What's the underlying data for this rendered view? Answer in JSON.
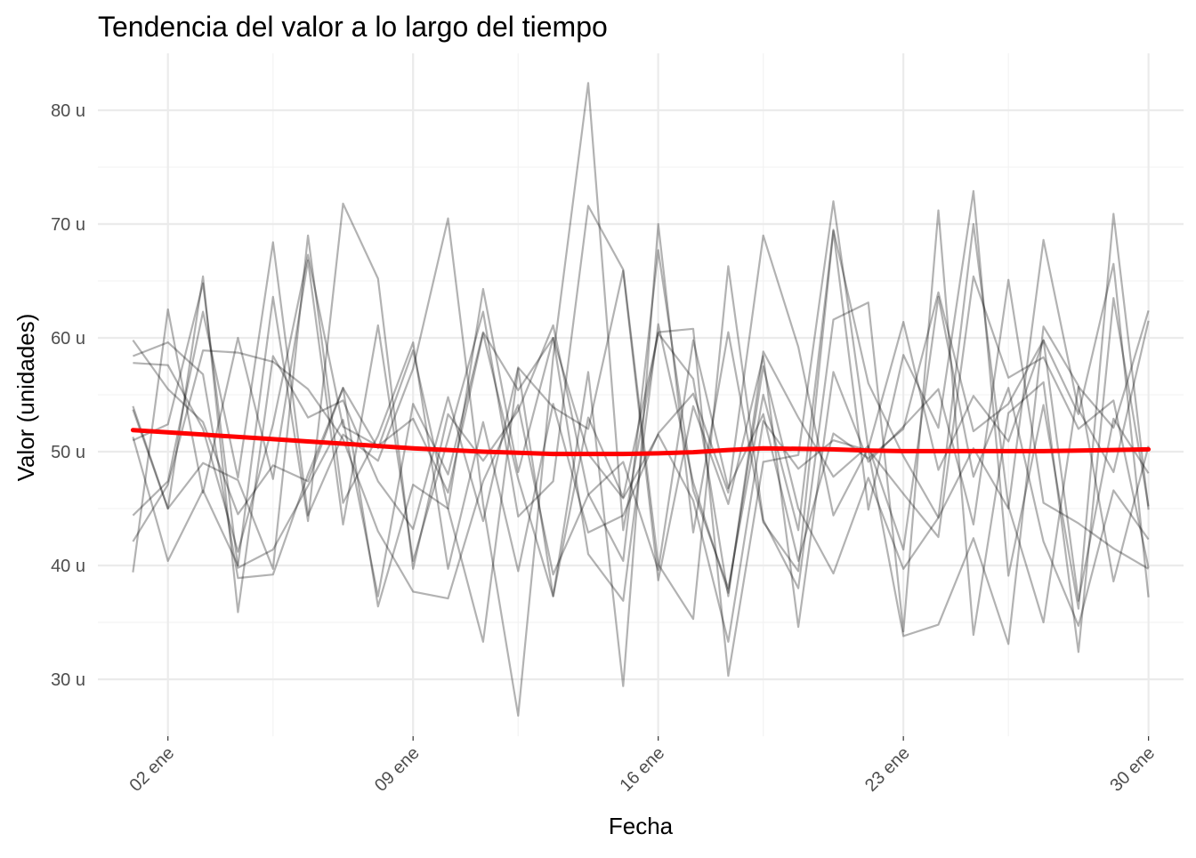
{
  "chart_data": {
    "type": "line",
    "title": "Tendencia del valor a lo largo del tiempo",
    "xlabel": "Fecha",
    "ylabel": "Valor (unidades)",
    "x_axis": {
      "type": "date",
      "range": [
        "2023-12-31",
        "2024-01-31"
      ],
      "major_ticks": [
        "2024-01-02",
        "2024-01-09",
        "2024-01-16",
        "2024-01-23",
        "2024-01-30"
      ],
      "tick_labels": [
        "02 ene",
        "09 ene",
        "16 ene",
        "23 ene",
        "30 ene"
      ],
      "minor_ticks": [
        "2024-01-05",
        "2024-01-12",
        "2024-01-19",
        "2024-01-26"
      ]
    },
    "y_axis": {
      "range": [
        25,
        85
      ],
      "major_ticks": [
        30,
        40,
        50,
        60,
        70,
        80
      ],
      "tick_labels": [
        "30 u",
        "40 u",
        "50 u",
        "60 u",
        "70 u",
        "80 u"
      ],
      "minor_ticks": [
        35,
        45,
        55,
        65,
        75
      ]
    },
    "grid": true,
    "x": [
      "2024-01-01",
      "2024-01-02",
      "2024-01-03",
      "2024-01-04",
      "2024-01-05",
      "2024-01-06",
      "2024-01-07",
      "2024-01-08",
      "2024-01-09",
      "2024-01-10",
      "2024-01-11",
      "2024-01-12",
      "2024-01-13",
      "2024-01-14",
      "2024-01-15",
      "2024-01-16",
      "2024-01-17",
      "2024-01-18",
      "2024-01-19",
      "2024-01-20",
      "2024-01-21",
      "2024-01-22",
      "2024-01-23",
      "2024-01-24",
      "2024-01-25",
      "2024-01-26",
      "2024-01-27",
      "2024-01-28",
      "2024-01-29",
      "2024-01-30"
    ],
    "series_color": "#000000",
    "series_opacity": 0.3,
    "series": [
      {
        "values": [
          59.8,
          55.5,
          52.6,
          44.5,
          48.8,
          47.4,
          55.6,
          50.3,
          58.9,
          45.0,
          64.3,
          48.2,
          60.0,
          41.0,
          36.9,
          61.2,
          47.3,
          37.6,
          57.5,
          45.0,
          39.3,
          47.7,
          39.7,
          44.2,
          70.0,
          45.2,
          35.0,
          55.7,
          52.1,
          62.4
        ]
      },
      {
        "values": [
          53.7,
          45.0,
          65.4,
          35.9,
          58.4,
          53.0,
          54.5,
          47.4,
          43.2,
          54.8,
          43.9,
          57.4,
          53.9,
          52.0,
          65.9,
          38.7,
          54.0,
          45.4,
          58.4,
          34.6,
          57.0,
          49.1,
          52.2,
          55.5,
          43.6,
          65.1,
          45.5,
          43.7,
          41.5,
          39.7
        ]
      },
      {
        "values": [
          39.4,
          62.5,
          46.4,
          60.0,
          47.6,
          66.8,
          43.6,
          61.1,
          40.4,
          51.1,
          62.3,
          44.3,
          47.4,
          71.6,
          66.0,
          40.1,
          35.3,
          66.3,
          44.0,
          38.0,
          61.6,
          63.1,
          34.2,
          71.2,
          33.9,
          53.4,
          56.1,
          32.4,
          63.5,
          45.2
        ]
      },
      {
        "values": [
          58.4,
          59.6,
          56.8,
          38.9,
          39.2,
          48.0,
          55.6,
          36.4,
          47.1,
          45.0,
          33.3,
          57.3,
          37.3,
          57.0,
          29.4,
          70.0,
          42.9,
          60.5,
          43.8,
          39.5,
          69.4,
          44.9,
          58.5,
          52.1,
          72.9,
          39.1,
          54.1,
          36.2,
          70.9,
          44.9
        ]
      },
      {
        "values": [
          42.1,
          47.1,
          58.9,
          58.7,
          57.9,
          55.5,
          51.1,
          43.0,
          37.7,
          37.1,
          47.4,
          54.1,
          39.2,
          46.2,
          49.1,
          39.6,
          59.8,
          46.8,
          53.3,
          40.4,
          51.6,
          49.4,
          52.0,
          64.0,
          51.8,
          54.2,
          59.8,
          36.9,
          52.9,
          48.1
        ]
      },
      {
        "values": [
          51.3,
          40.4,
          46.6,
          40.0,
          63.6,
          43.9,
          71.8,
          65.2,
          39.7,
          53.3,
          49.2,
          53.6,
          61.1,
          46.3,
          40.4,
          67.7,
          46.6,
          38.0,
          55.0,
          43.1,
          69.5,
          56.0,
          49.6,
          44.2,
          50.3,
          45.0,
          68.6,
          53.7,
          48.2,
          61.5
        ]
      },
      {
        "values": [
          44.4,
          47.4,
          62.3,
          47.7,
          68.4,
          44.4,
          51.5,
          49.2,
          57.3,
          70.5,
          45.4,
          26.8,
          58.3,
          82.4,
          43.1,
          60.5,
          60.8,
          30.3,
          49.1,
          49.7,
          72.0,
          50.2,
          46.3,
          42.5,
          65.4,
          56.5,
          58.3,
          52.0,
          54.5,
          39.8
        ]
      },
      {
        "values": [
          54.0,
          45.0,
          49.0,
          47.5,
          39.7,
          69.0,
          45.5,
          51.4,
          59.6,
          39.7,
          52.6,
          39.5,
          54.2,
          42.9,
          44.4,
          51.6,
          55.1,
          46.4,
          69.0,
          59.2,
          44.4,
          50.3,
          61.4,
          48.4,
          54.9,
          50.9,
          59.8,
          53.3,
          66.5,
          37.2
        ]
      },
      {
        "values": [
          57.8,
          57.6,
          52.0,
          41.2,
          52.4,
          67.3,
          52.2,
          50.5,
          52.9,
          46.4,
          60.4,
          47.6,
          37.3,
          53.0,
          46.0,
          60.4,
          56.4,
          37.3,
          58.8,
          53.0,
          47.8,
          50.5,
          41.4,
          63.6,
          47.8,
          55.6,
          42.1,
          34.7,
          46.6,
          42.3
        ]
      },
      {
        "values": [
          51.0,
          52.4,
          64.8,
          39.8,
          41.4,
          47.0,
          52.8,
          37.3,
          54.2,
          48.0,
          60.5,
          55.4,
          60.0,
          49.8,
          45.9,
          51.5,
          45.7,
          33.3,
          52.7,
          48.5,
          51.0,
          50.1,
          33.8,
          34.8,
          42.4,
          33.1,
          61.0,
          55.8,
          38.6,
          50.5
        ]
      }
    ],
    "trend": {
      "color": "#ff0000",
      "values": [
        51.9,
        51.7,
        51.5,
        51.3,
        51.1,
        50.9,
        50.7,
        50.5,
        50.3,
        50.15,
        50.0,
        49.9,
        49.8,
        49.8,
        49.8,
        49.85,
        49.95,
        50.15,
        50.3,
        50.25,
        50.2,
        50.1,
        50.05,
        50.05,
        50.05,
        50.05,
        50.05,
        50.1,
        50.15,
        50.2
      ]
    }
  }
}
